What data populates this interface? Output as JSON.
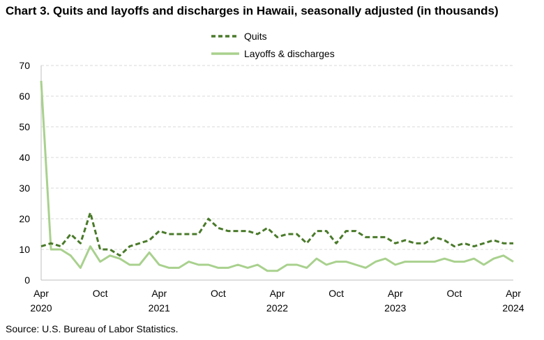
{
  "title": "Chart 3. Quits and layoffs and discharges in Hawaii, seasonally adjusted (in thousands)",
  "source": "Source: U.S. Bureau of Labor Statistics.",
  "colors": {
    "quits": "#4a7a2a",
    "layoffs": "#a9d18e",
    "grid": "#d9d9d9"
  },
  "chart_data": {
    "type": "line",
    "title": "Chart 3. Quits and layoffs and discharges in Hawaii, seasonally adjusted (in thousands)",
    "xlabel": "",
    "ylabel": "",
    "ylim": [
      0,
      70
    ],
    "yticks": [
      "0",
      "10",
      "20",
      "30",
      "40",
      "50",
      "60",
      "70"
    ],
    "grid": "horizontal dashed",
    "legend": "top-center",
    "x": [
      "2020-04",
      "2020-05",
      "2020-06",
      "2020-07",
      "2020-08",
      "2020-09",
      "2020-10",
      "2020-11",
      "2020-12",
      "2021-01",
      "2021-02",
      "2021-03",
      "2021-04",
      "2021-05",
      "2021-06",
      "2021-07",
      "2021-08",
      "2021-09",
      "2021-10",
      "2021-11",
      "2021-12",
      "2022-01",
      "2022-02",
      "2022-03",
      "2022-04",
      "2022-05",
      "2022-06",
      "2022-07",
      "2022-08",
      "2022-09",
      "2022-10",
      "2022-11",
      "2022-12",
      "2023-01",
      "2023-02",
      "2023-03",
      "2023-04",
      "2023-05",
      "2023-06",
      "2023-07",
      "2023-08",
      "2023-09",
      "2023-10",
      "2023-11",
      "2023-12",
      "2024-01",
      "2024-02",
      "2024-03",
      "2024-04"
    ],
    "xticks": [
      {
        "month": "Apr",
        "year": "2020",
        "index": 0
      },
      {
        "month": "Oct",
        "year": "",
        "index": 6
      },
      {
        "month": "Apr",
        "year": "2021",
        "index": 12
      },
      {
        "month": "Oct",
        "year": "",
        "index": 18
      },
      {
        "month": "Apr",
        "year": "2022",
        "index": 24
      },
      {
        "month": "Oct",
        "year": "",
        "index": 30
      },
      {
        "month": "Apr",
        "year": "2023",
        "index": 36
      },
      {
        "month": "Oct",
        "year": "",
        "index": 42
      },
      {
        "month": "Apr",
        "year": "2024",
        "index": 48
      }
    ],
    "series": [
      {
        "name": "Quits",
        "style": "dashed",
        "values": [
          11,
          12,
          11,
          15,
          12,
          22,
          10,
          10,
          8,
          11,
          12,
          13,
          16,
          15,
          15,
          15,
          15,
          20,
          17,
          16,
          16,
          16,
          15,
          17,
          14,
          15,
          15,
          12,
          16,
          16,
          12,
          16,
          16,
          14,
          14,
          14,
          12,
          13,
          12,
          12,
          14,
          13,
          11,
          12,
          11,
          12,
          13,
          12,
          12
        ]
      },
      {
        "name": "Layoffs & discharges",
        "style": "solid",
        "values": [
          65,
          10,
          10,
          8,
          4,
          11,
          6,
          8,
          7,
          5,
          5,
          9,
          5,
          4,
          4,
          6,
          5,
          5,
          4,
          4,
          5,
          4,
          5,
          3,
          3,
          5,
          5,
          4,
          7,
          5,
          6,
          6,
          5,
          4,
          6,
          7,
          5,
          6,
          6,
          6,
          6,
          7,
          6,
          6,
          7,
          5,
          7,
          8,
          6
        ]
      }
    ]
  }
}
